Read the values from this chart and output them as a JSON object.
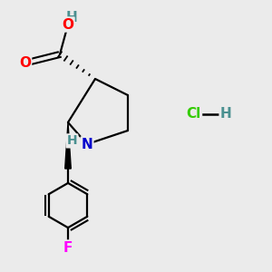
{
  "bg_color": "#ebebeb",
  "atom_colors": {
    "O": "#ff0000",
    "N": "#0000cd",
    "F": "#ff00ff",
    "Cl": "#33cc00",
    "H": "#4a9090"
  },
  "font_size_main": 11,
  "font_size_hcl_cl": 11,
  "font_size_hcl_h": 11
}
